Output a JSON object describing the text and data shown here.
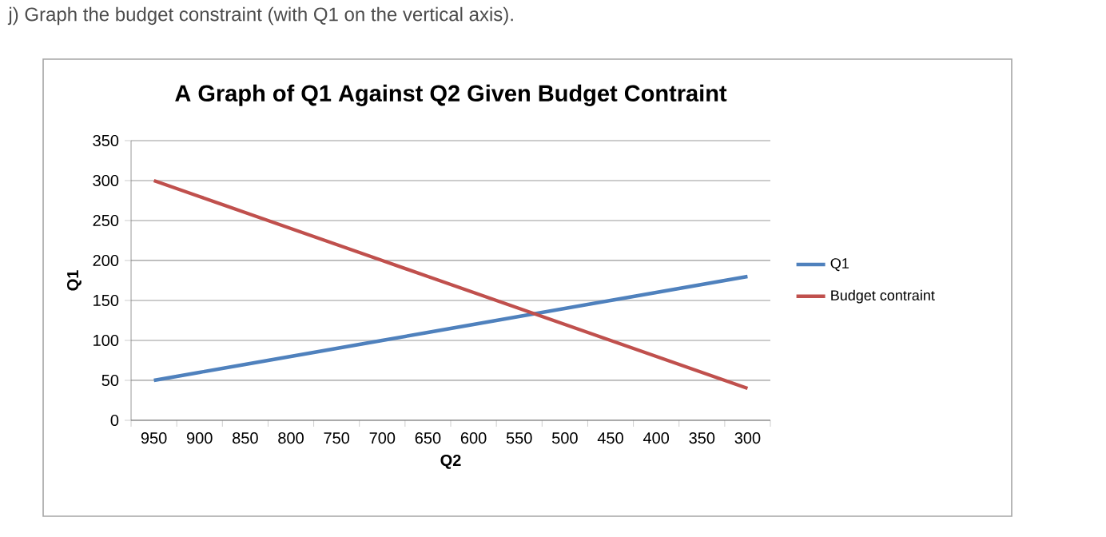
{
  "chart_data": {
    "type": "line",
    "title": "A Graph of Q1 Against Q2 Given Budget Contraint",
    "annotations": [
      "j) Graph the budget constraint (with Q1 on the vertical axis)."
    ],
    "xlabel": "Q2",
    "ylabel": "Q1",
    "categories": [
      "950",
      "900",
      "850",
      "800",
      "750",
      "700",
      "650",
      "600",
      "550",
      "500",
      "450",
      "400",
      "350",
      "300"
    ],
    "series": [
      {
        "name": "Q1",
        "color": "#4f81bd",
        "values": [
          50,
          60,
          70,
          80,
          90,
          100,
          110,
          120,
          130,
          140,
          150,
          160,
          170,
          180
        ]
      },
      {
        "name": "Budget contraint",
        "color": "#c0504d",
        "values": [
          300,
          280,
          260,
          240,
          220,
          200,
          180,
          160,
          140,
          120,
          100,
          80,
          60,
          40
        ]
      }
    ],
    "ylim": [
      0,
      350
    ],
    "yticks": [
      0,
      50,
      100,
      150,
      200,
      250,
      300,
      350
    ],
    "grid": "y",
    "legend": "right",
    "marker": "none",
    "line_style": "solid"
  }
}
